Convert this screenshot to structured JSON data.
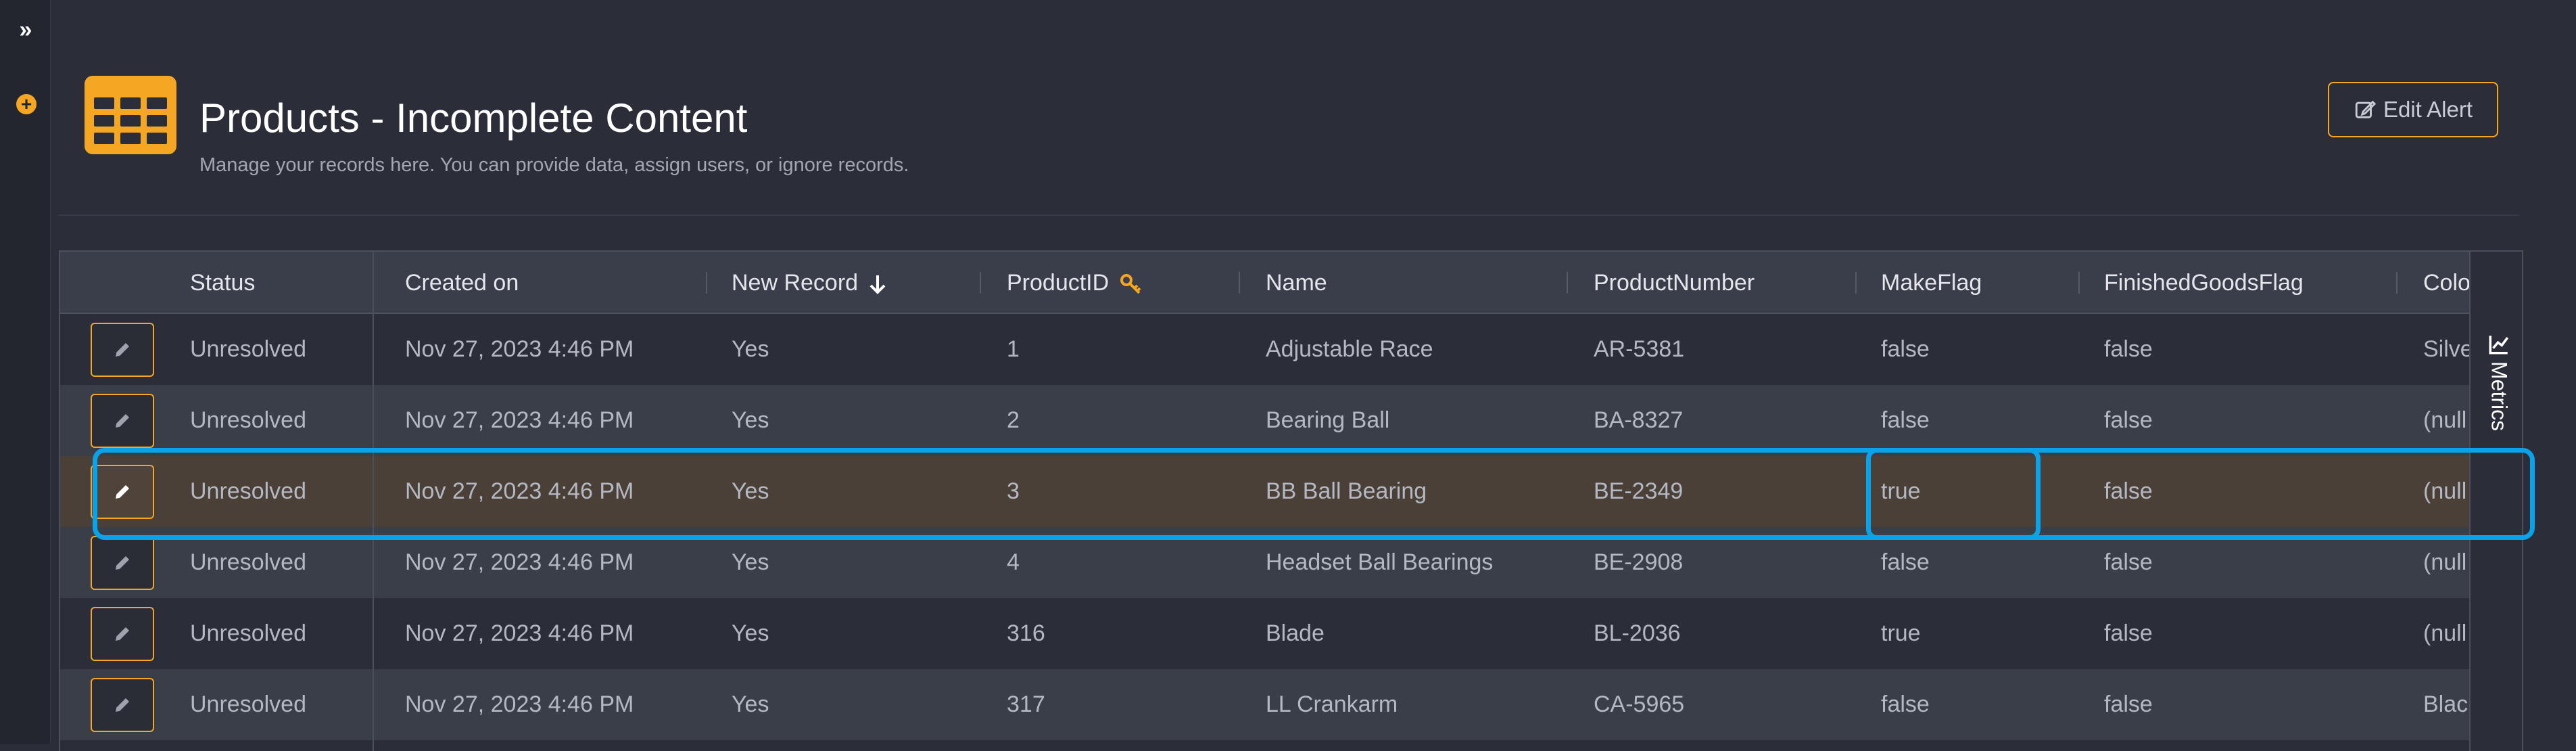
{
  "sidebar": {
    "expand_icon": "double-chevron-right-icon",
    "add_icon": "plus-circle-icon"
  },
  "header": {
    "title": "Products - Incomplete Content",
    "subtitle": "Manage your records here. You can provide data, assign users, or ignore records.",
    "edit_alert_label": "Edit Alert",
    "logo_icon": "table-grid-icon",
    "accent_color": "#f5a623"
  },
  "table": {
    "columns": [
      "Status",
      "Created on",
      "New Record",
      "ProductID",
      "Name",
      "ProductNumber",
      "MakeFlag",
      "FinishedGoodsFlag",
      "Colo"
    ],
    "sort_icon": "arrow-down-icon",
    "key_icon": "key-icon",
    "rows": [
      {
        "status": "Unresolved",
        "created_on": "Nov 27, 2023 4:46 PM",
        "new_record": "Yes",
        "product_id": "1",
        "name": "Adjustable Race",
        "product_number": "AR-5381",
        "make_flag": "false",
        "finished_goods_flag": "false",
        "color": "Silve"
      },
      {
        "status": "Unresolved",
        "created_on": "Nov 27, 2023 4:46 PM",
        "new_record": "Yes",
        "product_id": "2",
        "name": "Bearing Ball",
        "product_number": "BA-8327",
        "make_flag": "false",
        "finished_goods_flag": "false",
        "color": "(null"
      },
      {
        "status": "Unresolved",
        "created_on": "Nov 27, 2023 4:46 PM",
        "new_record": "Yes",
        "product_id": "3",
        "name": "BB Ball Bearing",
        "product_number": "BE-2349",
        "make_flag": "true",
        "finished_goods_flag": "false",
        "color": "(null"
      },
      {
        "status": "Unresolved",
        "created_on": "Nov 27, 2023 4:46 PM",
        "new_record": "Yes",
        "product_id": "4",
        "name": "Headset Ball Bearings",
        "product_number": "BE-2908",
        "make_flag": "false",
        "finished_goods_flag": "false",
        "color": "(null"
      },
      {
        "status": "Unresolved",
        "created_on": "Nov 27, 2023 4:46 PM",
        "new_record": "Yes",
        "product_id": "316",
        "name": "Blade",
        "product_number": "BL-2036",
        "make_flag": "true",
        "finished_goods_flag": "false",
        "color": "(null"
      },
      {
        "status": "Unresolved",
        "created_on": "Nov 27, 2023 4:46 PM",
        "new_record": "Yes",
        "product_id": "317",
        "name": "LL Crankarm",
        "product_number": "CA-5965",
        "make_flag": "false",
        "finished_goods_flag": "false",
        "color": "Blac"
      }
    ]
  },
  "metrics_tab": {
    "label": "Metrics",
    "icon": "line-chart-icon"
  },
  "highlight_color": "#0aa2e8"
}
